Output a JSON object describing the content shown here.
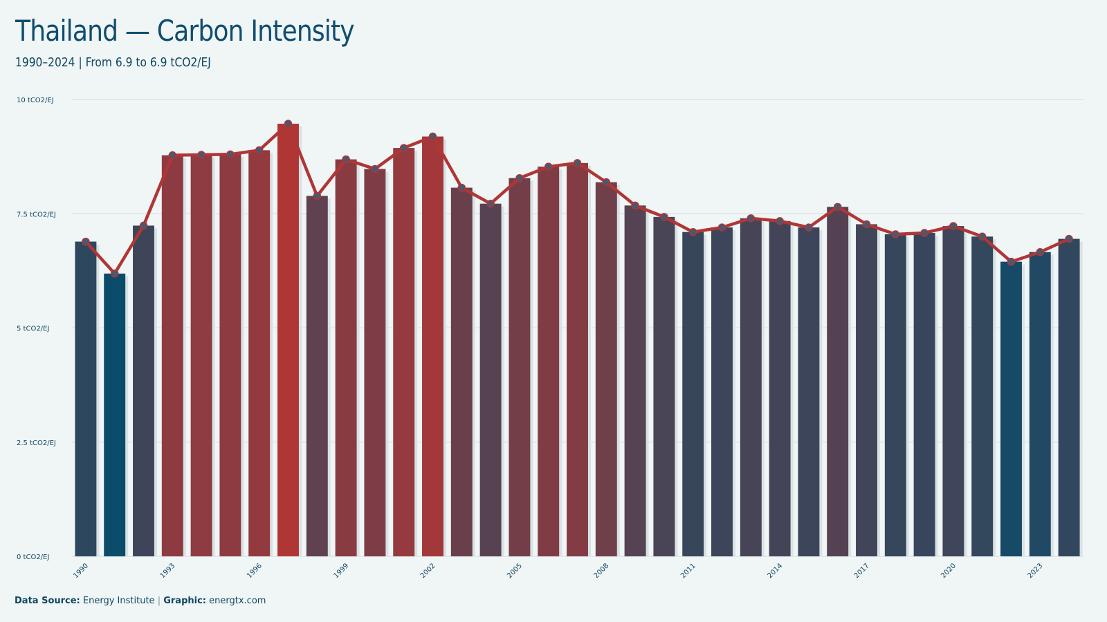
{
  "title": "Thailand — Carbon Intensity",
  "subtitle": "1990–2024 | From 6.9 to 6.9 tCO2/EJ",
  "footer": {
    "source_label": "Data Source:",
    "source_value": "Energy Institute",
    "separator": "|",
    "graphic_label": "Graphic:",
    "graphic_value": "energtx.com"
  },
  "colors": {
    "low": "#0a4c6a",
    "high": "#b03636",
    "line": "#b03636",
    "marker": "#4a5870",
    "grid": "#d4dadd",
    "bar_shadow": "#d8e2e4"
  },
  "chart_data": {
    "type": "bar",
    "title": "Thailand — Carbon Intensity",
    "xlabel": "",
    "ylabel": "",
    "ylim": [
      0,
      10
    ],
    "y_ticks": [
      {
        "value": 0,
        "label": "0 tCO2/EJ"
      },
      {
        "value": 2.5,
        "label": "2.5 tCO2/EJ"
      },
      {
        "value": 5,
        "label": "5 tCO2/EJ"
      },
      {
        "value": 7.5,
        "label": "7.5 tCO2/EJ"
      },
      {
        "value": 10,
        "label": "10 tCO2/EJ"
      }
    ],
    "x_tick_labels": [
      "1990",
      "1993",
      "1996",
      "1999",
      "2002",
      "2005",
      "2008",
      "2011",
      "2014",
      "2017",
      "2020",
      "2023"
    ],
    "grid": true,
    "overlay": "line-with-markers",
    "categories": [
      1990,
      1991,
      1992,
      1993,
      1994,
      1995,
      1996,
      1997,
      1998,
      1999,
      2000,
      2001,
      2002,
      2003,
      2004,
      2005,
      2006,
      2007,
      2008,
      2009,
      2010,
      2011,
      2012,
      2013,
      2014,
      2015,
      2016,
      2017,
      2018,
      2019,
      2020,
      2021,
      2022,
      2023,
      2024
    ],
    "values": [
      6.89,
      6.19,
      7.24,
      8.78,
      8.79,
      8.8,
      8.89,
      9.47,
      7.89,
      8.69,
      8.48,
      8.94,
      9.19,
      8.07,
      7.72,
      8.28,
      8.53,
      8.61,
      8.19,
      7.68,
      7.43,
      7.1,
      7.2,
      7.4,
      7.34,
      7.2,
      7.65,
      7.27,
      7.05,
      7.08,
      7.23,
      7.0,
      6.45,
      6.66,
      6.95
    ]
  }
}
